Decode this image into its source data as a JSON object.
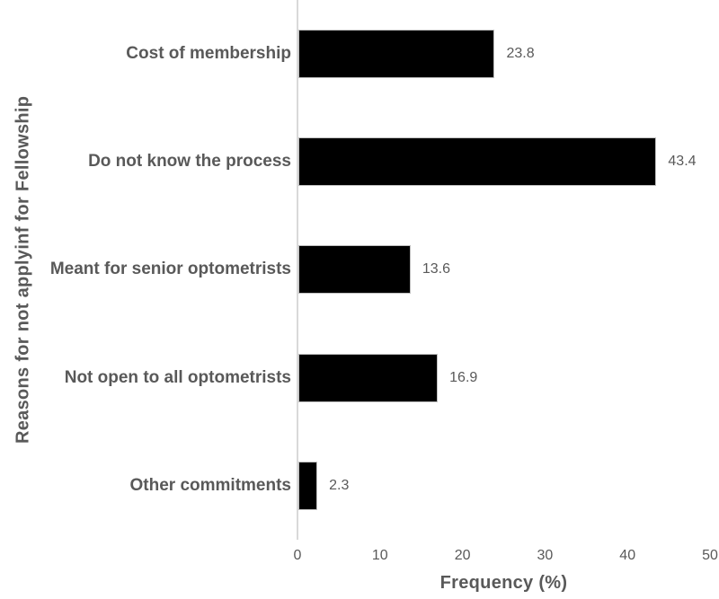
{
  "chart_data": {
    "type": "bar",
    "orientation": "horizontal",
    "title": "",
    "xlabel": "Frequency (%)",
    "ylabel": "Reasons for not applyinf for Fellowship",
    "categories": [
      "Cost of membership",
      "Do not know the process",
      "Meant for senior optometrists",
      "Not open to all optometrists",
      "Other commitments"
    ],
    "values": [
      23.8,
      43.4,
      13.6,
      16.9,
      2.3
    ],
    "value_labels": [
      "23.8",
      "43.4",
      "13.6",
      "16.9",
      "2.3"
    ],
    "xlim": [
      0,
      50
    ],
    "xticks": [
      0,
      10,
      20,
      30,
      40,
      50
    ],
    "xtick_labels": [
      "0",
      "10",
      "20",
      "30",
      "40",
      "50"
    ],
    "grid": false,
    "legend": false,
    "colors": {
      "bar": "#000000",
      "bar_outline": "#bfbfbf",
      "axis_line": "#d9d9d9",
      "text": "#595959",
      "background": "#ffffff"
    }
  }
}
